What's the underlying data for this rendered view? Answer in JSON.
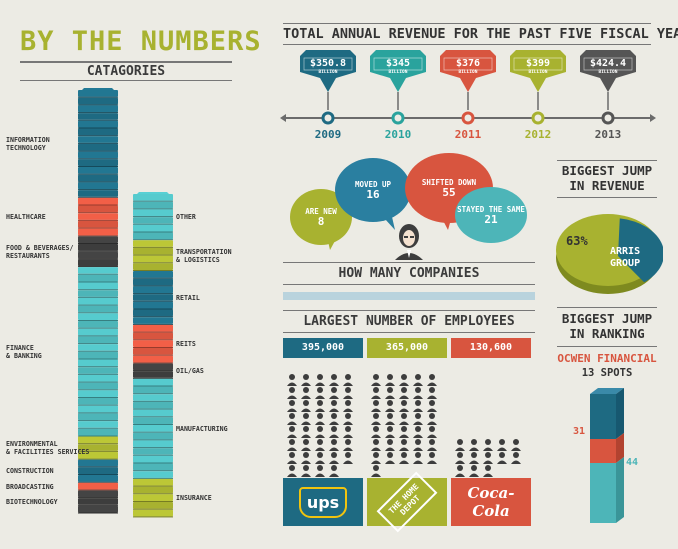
{
  "header": {
    "title": "BY THE NUMBERS",
    "subtitle": "CATAGORIES"
  },
  "colors": {
    "teal": "#1e6a82",
    "light_teal": "#4db5b8",
    "red": "#d8553f",
    "green": "#a8b230",
    "dark": "#3d3d3d",
    "gray": "#6b6b6b"
  },
  "categories": {
    "left": [
      {
        "label": "INFORMATION\nTECHNOLOGY",
        "color": "#1e6a82",
        "slices": 14
      },
      {
        "label": "HEALTHCARE",
        "color": "#d8553f",
        "slices": 5
      },
      {
        "label": "FOOD & BEVERAGES/\nRESTAURANTS",
        "color": "#3d3d3d",
        "slices": 4
      },
      {
        "label": "FINANCE\n& BANKING",
        "color": "#4db5b8",
        "slices": 22
      },
      {
        "label": "ENVIRONMENTAL\n& FACILITIES SERVICES",
        "color": "#a8b230",
        "slices": 3
      },
      {
        "label": "CONSTRUCTION",
        "color": "#1e6a82",
        "slices": 3
      },
      {
        "label": "BROADCASTING",
        "color": "#d8553f",
        "slices": 1
      },
      {
        "label": "BIOTECHNOLOGY",
        "color": "#3d3d3d",
        "slices": 3
      }
    ],
    "right": [
      {
        "label": "OTHER",
        "color": "#4db5b8",
        "slices": 6
      },
      {
        "label": "TRANSPORTATION\n& LOGISTICS",
        "color": "#a8b230",
        "slices": 4
      },
      {
        "label": "RETAIL",
        "color": "#1e6a82",
        "slices": 7
      },
      {
        "label": "REITS",
        "color": "#d8553f",
        "slices": 5
      },
      {
        "label": "OIL/GAS",
        "color": "#3d3d3d",
        "slices": 2
      },
      {
        "label": "MANUFACTURING",
        "color": "#4db5b8",
        "slices": 13
      },
      {
        "label": "INSURANCE",
        "color": "#a8b230",
        "slices": 5
      }
    ]
  },
  "revenue": {
    "title": "TOTAL ANNUAL REVENUE FOR THE PAST FIVE FISCAL YEARS",
    "items": [
      {
        "year": "2009",
        "value": "$350.8",
        "unit": "BILLION",
        "color": "#1e6a82"
      },
      {
        "year": "2010",
        "value": "$345",
        "unit": "BILLION",
        "color": "#2aa39d"
      },
      {
        "year": "2011",
        "value": "$376",
        "unit": "BILLION",
        "color": "#d8553f"
      },
      {
        "year": "2012",
        "value": "$399",
        "unit": "BILLION",
        "color": "#a8b230"
      },
      {
        "year": "2013",
        "value": "$424.4",
        "unit": "BILLION",
        "color": "#555555"
      }
    ]
  },
  "companies": {
    "title": "HOW MANY COMPANIES",
    "bubbles": [
      {
        "label": "ARE NEW",
        "value": "8",
        "color": "#a8b230"
      },
      {
        "label": "MOVED UP",
        "value": "16",
        "color": "#2a7fa0"
      },
      {
        "label": "SHIFTED DOWN",
        "value": "55",
        "color": "#d8553f"
      },
      {
        "label": "STAYED THE SAME",
        "value": "21",
        "color": "#4db5b8"
      }
    ]
  },
  "jump_revenue": {
    "title": "BIGGEST JUMP\nIN REVENUE",
    "percent": "63%",
    "company": "ARRIS\nGROUP",
    "share": 63
  },
  "employees": {
    "title": "LARGEST NUMBER OF EMPLOYEES",
    "items": [
      {
        "value": "395,000",
        "company": "ups",
        "color": "#1e6a82",
        "count": 39
      },
      {
        "value": "365,000",
        "company": "THE HOME DEPOT",
        "color": "#a8b230",
        "count": 36
      },
      {
        "value": "130,600",
        "company": "Coca-Cola",
        "color": "#d8553f",
        "count": 13
      }
    ]
  },
  "jump_ranking": {
    "title": "BIGGEST JUMP\nIN RANKING",
    "company": "OCWEN FINANCIAL",
    "spots": "13 SPOTS",
    "from": "44",
    "to": "31"
  }
}
